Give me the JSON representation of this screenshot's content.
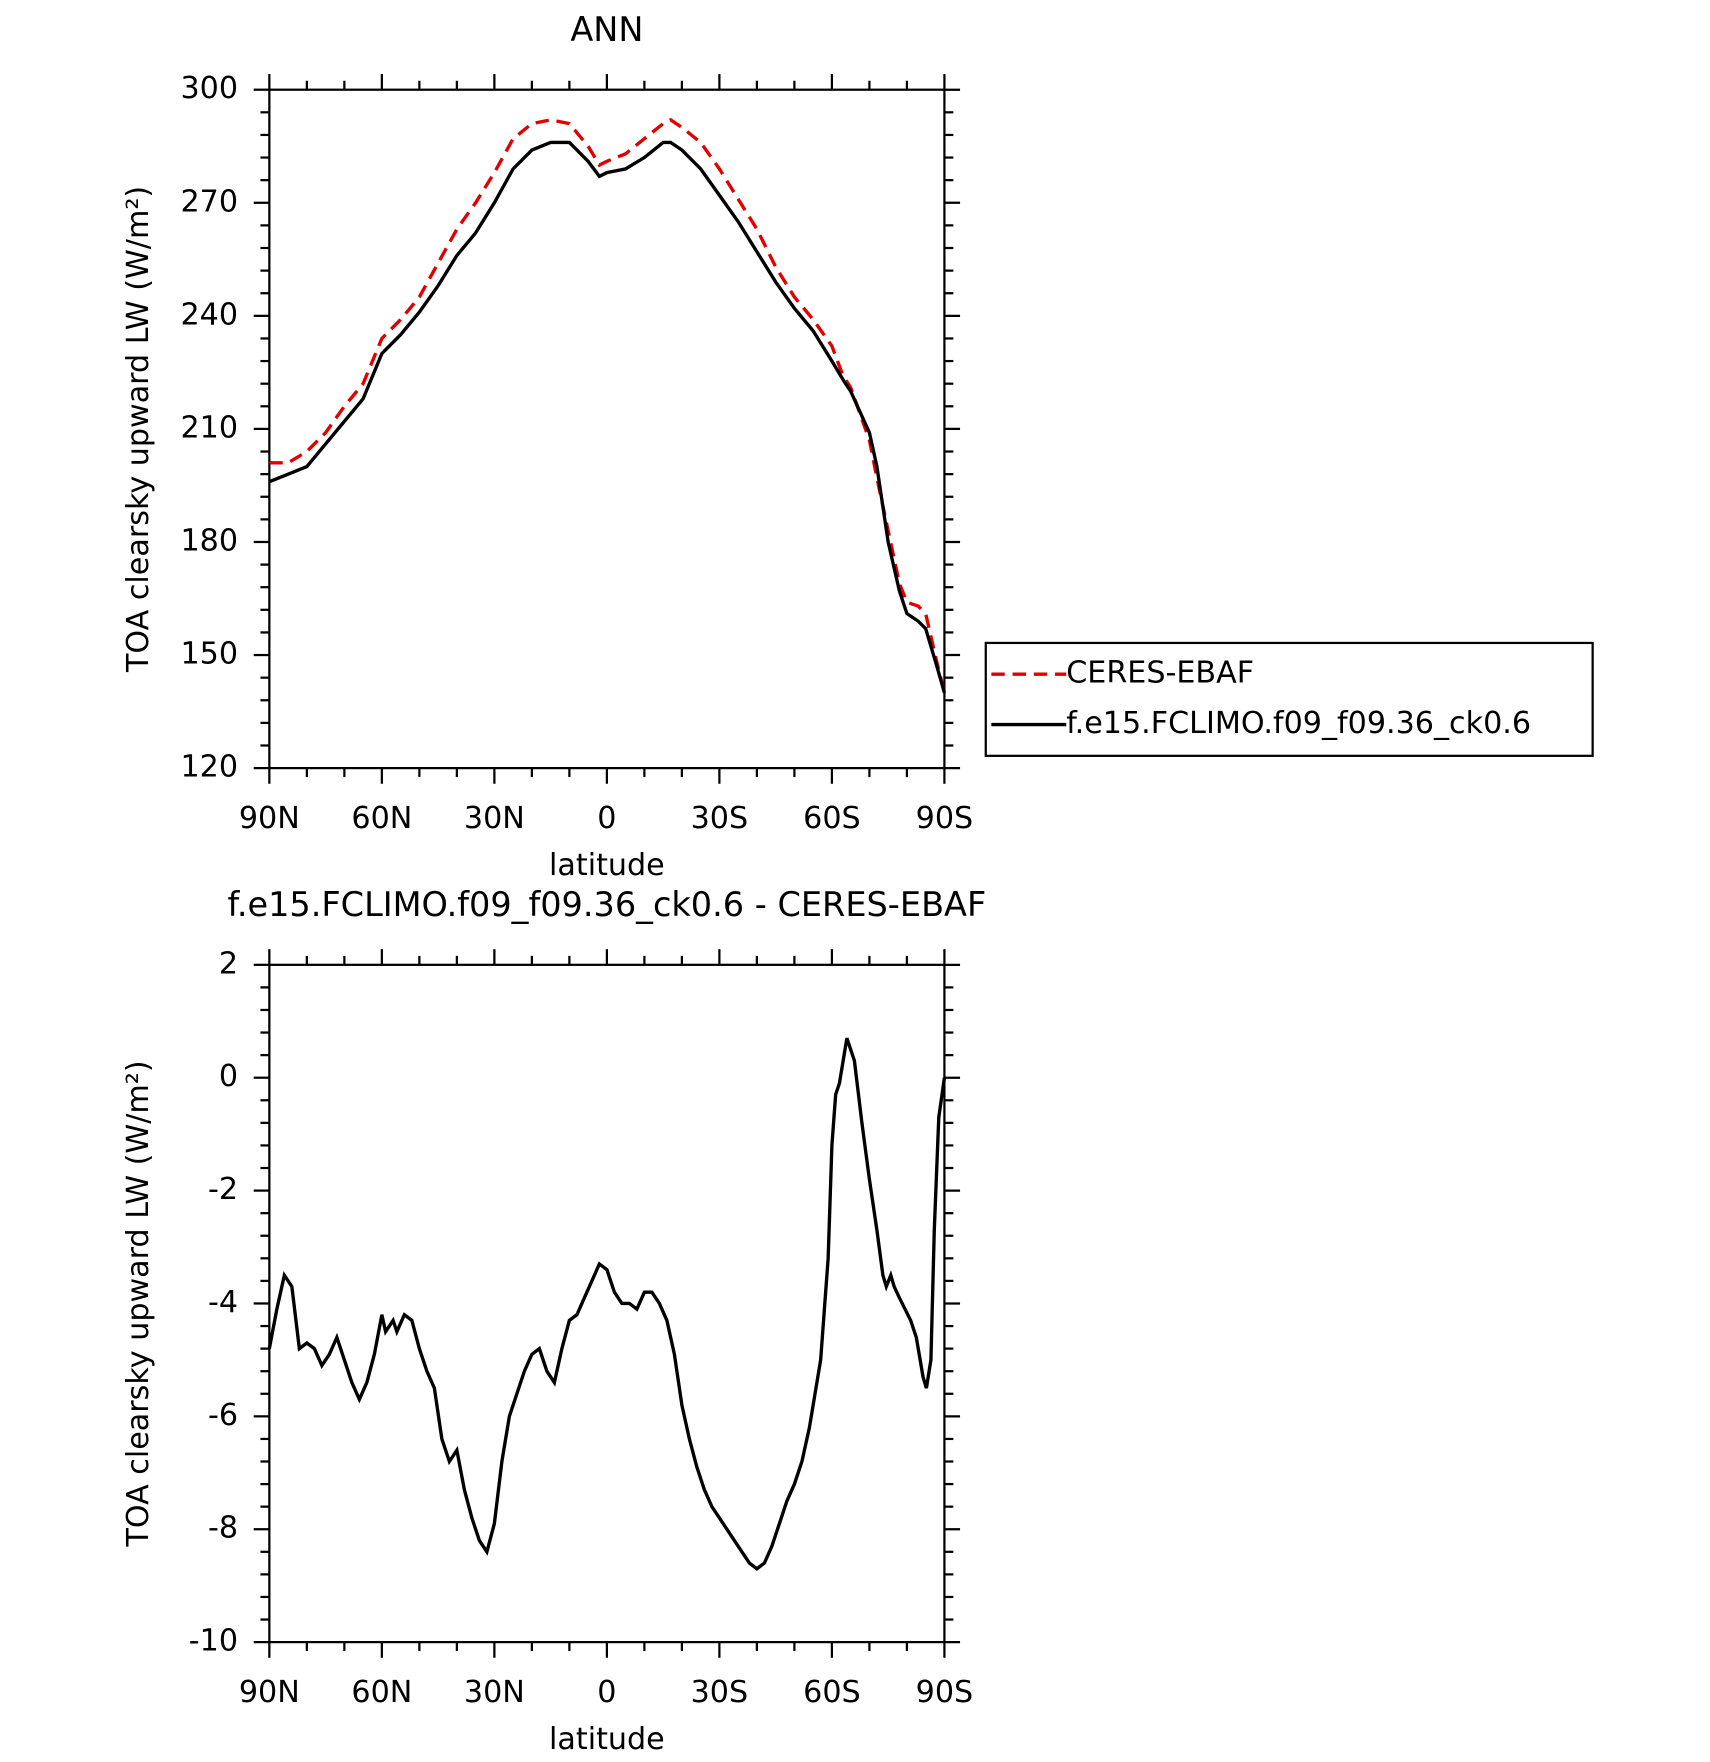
{
  "chart_data": [
    {
      "type": "line",
      "title": "ANN",
      "xlabel": "latitude",
      "ylabel": "TOA clearsky upward LW (W/m²)",
      "xlim": [
        90,
        -90
      ],
      "xticks": [
        {
          "value": 90,
          "label": "90N"
        },
        {
          "value": 60,
          "label": "60N"
        },
        {
          "value": 30,
          "label": "30N"
        },
        0,
        {
          "value": -30,
          "label": "30S"
        },
        {
          "value": -60,
          "label": "60S"
        },
        {
          "value": -90,
          "label": "90S"
        }
      ],
      "ylim": [
        120,
        300
      ],
      "yticks": [
        120,
        150,
        180,
        210,
        240,
        270,
        300
      ],
      "legend": "right",
      "x": [
        90,
        85,
        80,
        75,
        70,
        65,
        60,
        55,
        50,
        45,
        40,
        35,
        30,
        25,
        20,
        15,
        10,
        5,
        2,
        0,
        -5,
        -10,
        -15,
        -17,
        -20,
        -25,
        -30,
        -35,
        -40,
        -45,
        -50,
        -55,
        -60,
        -63,
        -65,
        -70,
        -72,
        -75,
        -78,
        -80,
        -83,
        -85,
        -88,
        -90
      ],
      "series": [
        {
          "name": "CERES-EBAF",
          "color": "#e00000",
          "dash": true,
          "values": [
            201,
            201,
            204,
            209,
            216,
            222,
            234,
            239,
            245,
            254,
            263,
            270,
            278,
            287,
            291,
            292,
            291,
            285,
            280,
            281,
            283,
            287,
            291,
            292,
            290,
            286,
            279,
            271,
            263,
            253,
            245,
            239,
            232,
            224,
            221,
            207,
            197,
            183,
            169,
            164,
            163,
            161,
            148,
            140
          ]
        },
        {
          "name": "f.e15.FCLIMO.f09_f09.36_ck0.6",
          "color": "#000000",
          "dash": false,
          "values": [
            196,
            198,
            200,
            206,
            212,
            218,
            230,
            235,
            241,
            248,
            256,
            262,
            270,
            279,
            284,
            286,
            286,
            281,
            277,
            278,
            279,
            282,
            286,
            286,
            284,
            279,
            272,
            265,
            257,
            249,
            242,
            236,
            228,
            223,
            220,
            209,
            200,
            180,
            167,
            161,
            159,
            157,
            147,
            140
          ]
        }
      ]
    },
    {
      "type": "line",
      "title": "f.e15.FCLIMO.f09_f09.36_ck0.6 - CERES-EBAF",
      "xlabel": "latitude",
      "ylabel": "TOA clearsky upward LW (W/m²)",
      "xlim": [
        90,
        -90
      ],
      "xticks": [
        {
          "value": 90,
          "label": "90N"
        },
        {
          "value": 60,
          "label": "60N"
        },
        {
          "value": 30,
          "label": "30N"
        },
        0,
        {
          "value": -30,
          "label": "30S"
        },
        {
          "value": -60,
          "label": "60S"
        },
        {
          "value": -90,
          "label": "90S"
        }
      ],
      "ylim": [
        -10,
        2
      ],
      "yticks": [
        -10,
        -8,
        -6,
        -4,
        -2,
        0,
        2
      ],
      "x": [
        90,
        88,
        86,
        84,
        82,
        80,
        78,
        76,
        74,
        72,
        70,
        68,
        66,
        64,
        62,
        60,
        59,
        57,
        56,
        54,
        52,
        50,
        48,
        46,
        44,
        42,
        40,
        38,
        36,
        34,
        32,
        30,
        28,
        26,
        24,
        22,
        20,
        18,
        16,
        14,
        12,
        10,
        8,
        6,
        4,
        2,
        0,
        -2,
        -4,
        -6,
        -8,
        -10,
        -12,
        -14,
        -16,
        -18,
        -20,
        -22,
        -24,
        -26,
        -28,
        -30,
        -32,
        -34,
        -36,
        -38,
        -40,
        -42,
        -44,
        -46,
        -48,
        -50,
        -52,
        -54,
        -57,
        -59,
        -60,
        -61,
        -62,
        -64,
        -66,
        -68,
        -70,
        -72,
        -73.6,
        -74.5,
        -75.7,
        -76.6,
        -78,
        -81,
        -82.5,
        -84.3,
        -85.2,
        -86.4,
        -87.3,
        -88.5,
        -90
      ],
      "series": [
        {
          "name": "",
          "color": "#000000",
          "dash": false,
          "values": [
            -4.8,
            -4.1,
            -3.5,
            -3.7,
            -4.8,
            -4.7,
            -4.8,
            -5.1,
            -4.9,
            -4.6,
            -5.0,
            -5.4,
            -5.7,
            -5.4,
            -4.9,
            -4.2,
            -4.5,
            -4.3,
            -4.5,
            -4.2,
            -4.3,
            -4.8,
            -5.2,
            -5.5,
            -6.4,
            -6.8,
            -6.6,
            -7.3,
            -7.8,
            -8.2,
            -8.4,
            -7.9,
            -6.8,
            -6.0,
            -5.6,
            -5.2,
            -4.9,
            -4.8,
            -5.2,
            -5.4,
            -4.8,
            -4.3,
            -4.2,
            -3.9,
            -3.6,
            -3.3,
            -3.4,
            -3.8,
            -4.0,
            -4.0,
            -4.1,
            -3.8,
            -3.8,
            -4.0,
            -4.3,
            -4.9,
            -5.8,
            -6.4,
            -6.9,
            -7.3,
            -7.6,
            -7.8,
            -8.0,
            -8.2,
            -8.4,
            -8.6,
            -8.7,
            -8.6,
            -8.3,
            -7.9,
            -7.5,
            -7.2,
            -6.8,
            -6.2,
            -5.0,
            -3.2,
            -1.2,
            -0.3,
            -0.1,
            0.7,
            0.3,
            -0.8,
            -1.8,
            -2.7,
            -3.5,
            -3.7,
            -3.5,
            -3.7,
            -3.9,
            -4.3,
            -4.6,
            -5.3,
            -5.5,
            -5.0,
            -2.7,
            -0.7,
            0
          ]
        }
      ]
    }
  ]
}
